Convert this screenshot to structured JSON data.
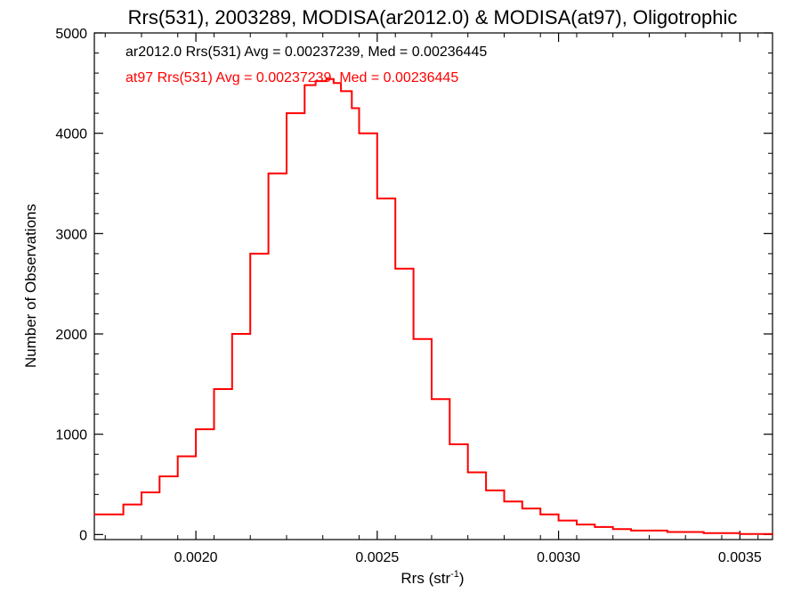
{
  "chart_data": {
    "type": "histogram",
    "title": "Rrs(531), 2003289, MODISA(ar2012.0) & MODISA(at97), Oligotrophic",
    "xlabel": "Rrs (str",
    "xlabel_sup": "-1",
    "xlabel_close": ")",
    "ylabel": "Number of Observations",
    "xlim": [
      0.00172,
      0.00359
    ],
    "ylim": [
      -50,
      5000
    ],
    "x_ticks": [
      0.002,
      0.0025,
      0.003,
      0.0035
    ],
    "x_tick_labels": [
      "0.0020",
      "0.0025",
      "0.0030",
      "0.0035"
    ],
    "y_ticks": [
      0,
      1000,
      2000,
      3000,
      4000,
      5000
    ],
    "y_tick_labels": [
      "0",
      "1000",
      "2000",
      "3000",
      "4000",
      "5000"
    ],
    "annotations": [
      {
        "text": "ar2012.0 Rrs(531) Avg = 0.00237239, Med = 0.00236445",
        "color": "#000000"
      },
      {
        "text": "at97 Rrs(531) Avg = 0.00237239, Med = 0.00236445",
        "color": "#ff0000"
      }
    ],
    "series": [
      {
        "color": "#ff0000",
        "step": true,
        "x": [
          0.00172,
          0.0018,
          0.00185,
          0.0019,
          0.00195,
          0.002,
          0.00205,
          0.0021,
          0.00215,
          0.0022,
          0.00225,
          0.0023,
          0.00233,
          0.00236,
          0.00238,
          0.0024,
          0.00243,
          0.00245,
          0.0025,
          0.00255,
          0.0026,
          0.00265,
          0.0027,
          0.00275,
          0.0028,
          0.00285,
          0.0029,
          0.00295,
          0.003,
          0.00305,
          0.0031,
          0.00315,
          0.0032,
          0.0033,
          0.0034,
          0.0035,
          0.00359
        ],
        "y": [
          200,
          300,
          420,
          580,
          780,
          1050,
          1450,
          2000,
          2800,
          3600,
          4200,
          4480,
          4520,
          4540,
          4500,
          4420,
          4250,
          4000,
          3350,
          2650,
          1950,
          1350,
          900,
          620,
          440,
          330,
          260,
          200,
          140,
          100,
          75,
          55,
          40,
          25,
          15,
          5,
          0
        ]
      }
    ]
  }
}
